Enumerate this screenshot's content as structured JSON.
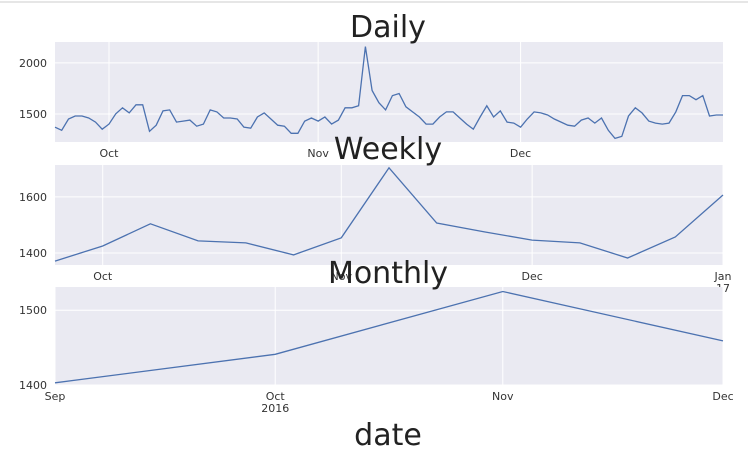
{
  "chart_data": [
    {
      "type": "line",
      "title": "Daily",
      "x": [
        "2016-09-23",
        "2016-09-24",
        "2016-09-25",
        "2016-09-26",
        "2016-09-27",
        "2016-09-28",
        "2016-09-29",
        "2016-09-30",
        "2016-10-01",
        "2016-10-02",
        "2016-10-03",
        "2016-10-04",
        "2016-10-05",
        "2016-10-06",
        "2016-10-07",
        "2016-10-08",
        "2016-10-09",
        "2016-10-10",
        "2016-10-11",
        "2016-10-12",
        "2016-10-13",
        "2016-10-14",
        "2016-10-15",
        "2016-10-16",
        "2016-10-17",
        "2016-10-18",
        "2016-10-19",
        "2016-10-20",
        "2016-10-21",
        "2016-10-22",
        "2016-10-23",
        "2016-10-24",
        "2016-10-25",
        "2016-10-26",
        "2016-10-27",
        "2016-10-28",
        "2016-10-29",
        "2016-10-30",
        "2016-10-31",
        "2016-11-01",
        "2016-11-02",
        "2016-11-03",
        "2016-11-04",
        "2016-11-05",
        "2016-11-06",
        "2016-11-07",
        "2016-11-08",
        "2016-11-09",
        "2016-11-10",
        "2016-11-11",
        "2016-11-12",
        "2016-11-13",
        "2016-11-14",
        "2016-11-15",
        "2016-11-16",
        "2016-11-17",
        "2016-11-18",
        "2016-11-19",
        "2016-11-20",
        "2016-11-21",
        "2016-11-22",
        "2016-11-23",
        "2016-11-24",
        "2016-11-25",
        "2016-11-26",
        "2016-11-27",
        "2016-11-28",
        "2016-11-29",
        "2016-11-30",
        "2016-12-01",
        "2016-12-02",
        "2016-12-03",
        "2016-12-04",
        "2016-12-05",
        "2016-12-06",
        "2016-12-07",
        "2016-12-08",
        "2016-12-09",
        "2016-12-10",
        "2016-12-11",
        "2016-12-12",
        "2016-12-13",
        "2016-12-14",
        "2016-12-15",
        "2016-12-16",
        "2016-12-17",
        "2016-12-18",
        "2016-12-19",
        "2016-12-20",
        "2016-12-21",
        "2016-12-22",
        "2016-12-23",
        "2016-12-24",
        "2016-12-25",
        "2016-12-26",
        "2016-12-27",
        "2016-12-28",
        "2016-12-29",
        "2016-12-30",
        "2016-12-31"
      ],
      "values": [
        1370,
        1340,
        1450,
        1480,
        1480,
        1460,
        1420,
        1350,
        1400,
        1500,
        1560,
        1510,
        1590,
        1590,
        1330,
        1390,
        1530,
        1540,
        1420,
        1430,
        1440,
        1380,
        1400,
        1540,
        1520,
        1460,
        1460,
        1450,
        1370,
        1360,
        1470,
        1510,
        1450,
        1390,
        1380,
        1310,
        1310,
        1430,
        1460,
        1430,
        1470,
        1400,
        1440,
        1560,
        1560,
        1580,
        2160,
        1730,
        1610,
        1540,
        1680,
        1700,
        1570,
        1520,
        1470,
        1400,
        1400,
        1470,
        1520,
        1520,
        1460,
        1400,
        1350,
        1470,
        1580,
        1470,
        1530,
        1420,
        1410,
        1370,
        1450,
        1520,
        1510,
        1490,
        1450,
        1420,
        1390,
        1380,
        1440,
        1460,
        1410,
        1460,
        1340,
        1260,
        1280,
        1480,
        1560,
        1510,
        1430,
        1410,
        1400,
        1410,
        1520,
        1680,
        1680,
        1640,
        1680,
        1480,
        1490,
        1490
      ],
      "color": "#4c72b0",
      "xlim": [
        "2016-09-23",
        "2016-12-31"
      ],
      "xticks": [
        {
          "value": "2016-10-01",
          "label": "Oct"
        },
        {
          "value": "2016-11-01",
          "label": "Nov"
        },
        {
          "value": "2016-12-01",
          "label": "Dec"
        }
      ],
      "ylim": [
        1225,
        2205
      ],
      "yticks": [
        1500,
        2000
      ],
      "grid": true
    },
    {
      "type": "line",
      "title": "Weekly",
      "x": [
        "2016-09-25",
        "2016-10-02",
        "2016-10-09",
        "2016-10-16",
        "2016-10-23",
        "2016-10-30",
        "2016-11-06",
        "2016-11-13",
        "2016-11-20",
        "2016-11-27",
        "2016-12-04",
        "2016-12-11",
        "2016-12-18",
        "2016-12-25",
        "2017-01-01"
      ],
      "values": [
        1371,
        1425,
        1504,
        1443,
        1436,
        1393,
        1454,
        1704,
        1507,
        1475,
        1446,
        1436,
        1382,
        1457,
        1607
      ],
      "color": "#4c72b0",
      "xlim": [
        "2016-09-25",
        "2017-01-01"
      ],
      "xticks": [
        {
          "value": "2016-10-02",
          "label": "Oct"
        },
        {
          "value": "2016-11-06",
          "label": "Nov"
        },
        {
          "value": "2016-12-04",
          "label": "Dec"
        },
        {
          "value": "2017-01-01",
          "label": "Jan\n17"
        }
      ],
      "ylim": [
        1357,
        1714
      ],
      "yticks": [
        1400,
        1600
      ],
      "grid": true
    },
    {
      "type": "line",
      "title": "Monthly",
      "xlabel": "date",
      "x": [
        "2016-09",
        "2016-10",
        "2016-11",
        "2016-12"
      ],
      "values": [
        1403,
        1441,
        1525,
        1459
      ],
      "color": "#4c72b0",
      "xlim": [
        "2016-09",
        "2016-12"
      ],
      "xticks": [
        {
          "value": "2016-09",
          "label": "Sep"
        },
        {
          "value": "2016-10",
          "label": "Oct\n2016"
        },
        {
          "value": "2016-11",
          "label": "Nov"
        },
        {
          "value": "2016-12",
          "label": "Dec"
        }
      ],
      "ylim": [
        1400,
        1531
      ],
      "yticks": [
        1400,
        1500
      ],
      "grid": true
    }
  ]
}
